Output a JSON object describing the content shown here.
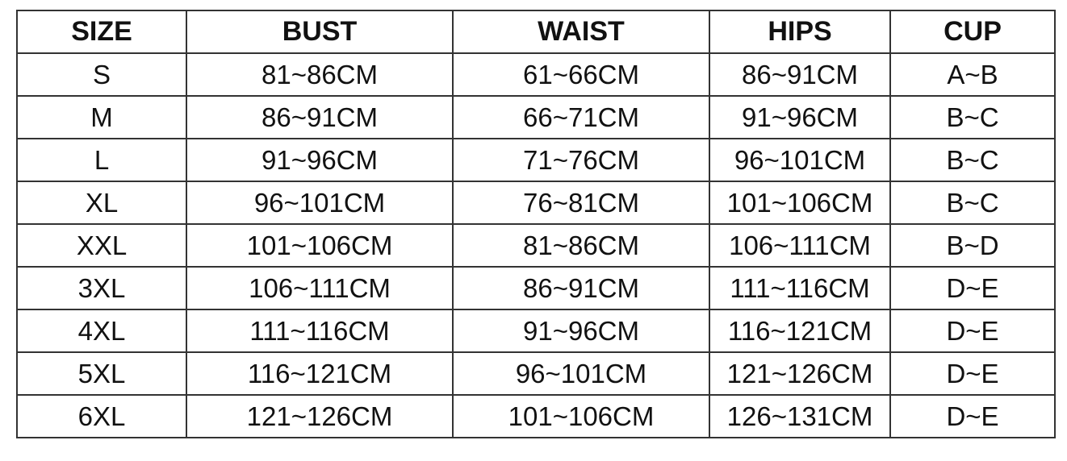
{
  "headers": [
    "SIZE",
    "BUST",
    "WAIST",
    "HIPS",
    "CUP"
  ],
  "rows": [
    [
      "S",
      "81~86CM",
      "61~66CM",
      "86~91CM",
      "A~B"
    ],
    [
      "M",
      "86~91CM",
      "66~71CM",
      "91~96CM",
      "B~C"
    ],
    [
      "L",
      "91~96CM",
      "71~76CM",
      "96~101CM",
      "B~C"
    ],
    [
      "XL",
      "96~101CM",
      "76~81CM",
      "101~106CM",
      "B~C"
    ],
    [
      "XXL",
      "101~106CM",
      "81~86CM",
      "106~111CM",
      "B~D"
    ],
    [
      "3XL",
      "106~111CM",
      "86~91CM",
      "111~116CM",
      "D~E"
    ],
    [
      "4XL",
      "111~116CM",
      "91~96CM",
      "116~121CM",
      "D~E"
    ],
    [
      "5XL",
      "116~121CM",
      "96~101CM",
      "121~126CM",
      "D~E"
    ],
    [
      "6XL",
      "121~126CM",
      "101~106CM",
      "126~131CM",
      "D~E"
    ]
  ]
}
